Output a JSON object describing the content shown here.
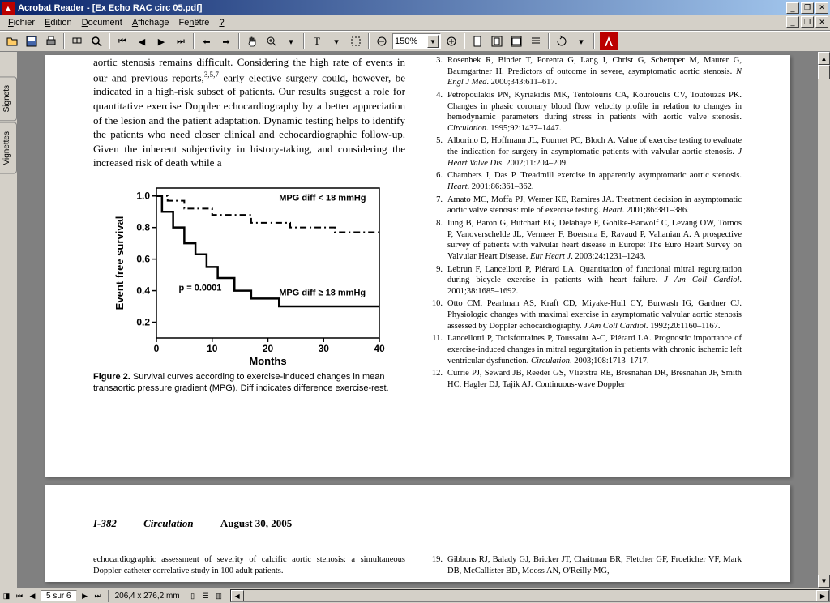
{
  "window": {
    "title": "Acrobat Reader - [Ex Echo RAC circ 05.pdf]"
  },
  "menu": {
    "items": [
      "Fichier",
      "Edition",
      "Document",
      "Affichage",
      "Fenêtre",
      "?"
    ]
  },
  "toolbar": {
    "zoom": "150%"
  },
  "sidebar": {
    "tabs": [
      "Signets",
      "Vignettes"
    ]
  },
  "statusbar": {
    "page_info": "5 sur 6",
    "dimensions": "206,4 x 276,2 mm"
  },
  "page1": {
    "left_body": "aortic stenosis remains difficult. Considering the high rate of events in our and previous reports,<sup>3,5,7</sup> early elective surgery could, however, be indicated in a high-risk subset of patients. Our results suggest a role for quantitative exercise Doppler echocardiography by a better appreciation of the lesion and the patient adaptation. Dynamic testing helps to identify the patients who need closer clinical and echocardiographic follow-up. Given the inherent subjectivity in history-taking, and considering the increased risk of death while a",
    "figure": {
      "caption_bold": "Figure 2.",
      "caption_text": " Survival curves according to exercise-induced changes in mean transaortic pressure gradient (MPG). Diff indicates difference exercise-rest.",
      "ylabel": "Event free survival",
      "xlabel": "Months",
      "xticks": [
        0,
        10,
        20,
        30,
        40
      ],
      "yticks": [
        "0.2",
        "0.4",
        "0.6",
        "0.8",
        "1.0"
      ],
      "curve1_label": "MPG diff < 18 mmHg",
      "curve2_label": "MPG diff ≥ 18 mmHg",
      "pval": "p = 0.0001",
      "curve1_points": [
        [
          0,
          1.0
        ],
        [
          2,
          1.0
        ],
        [
          2,
          0.97
        ],
        [
          5,
          0.97
        ],
        [
          5,
          0.92
        ],
        [
          10,
          0.92
        ],
        [
          10,
          0.88
        ],
        [
          17,
          0.88
        ],
        [
          17,
          0.83
        ],
        [
          24,
          0.83
        ],
        [
          24,
          0.8
        ],
        [
          32,
          0.8
        ],
        [
          32,
          0.77
        ],
        [
          40,
          0.77
        ]
      ],
      "curve2_points": [
        [
          0,
          1.0
        ],
        [
          1,
          1.0
        ],
        [
          1,
          0.9
        ],
        [
          3,
          0.9
        ],
        [
          3,
          0.8
        ],
        [
          5,
          0.8
        ],
        [
          5,
          0.7
        ],
        [
          7,
          0.7
        ],
        [
          7,
          0.63
        ],
        [
          9,
          0.63
        ],
        [
          9,
          0.55
        ],
        [
          11,
          0.55
        ],
        [
          11,
          0.48
        ],
        [
          14,
          0.48
        ],
        [
          14,
          0.4
        ],
        [
          17,
          0.4
        ],
        [
          17,
          0.35
        ],
        [
          22,
          0.35
        ],
        [
          22,
          0.3
        ],
        [
          40,
          0.3
        ]
      ],
      "xlim": [
        0,
        40
      ],
      "ylim": [
        0.1,
        1.05
      ],
      "axis_color": "#000000",
      "font_family": "Arial"
    },
    "references": [
      {
        "n": 3,
        "t": "Rosenhek R, Binder T, Porenta G, Lang I, Christ G, Schemper M, Maurer G, Baumgartner H. Predictors of outcome in severe, asymptomatic aortic stenosis. <i>N Engl J Med</i>. 2000;343:611–617."
      },
      {
        "n": 4,
        "t": "Petropoulakis PN, Kyriakidis MK, Tentolouris CA, Kourouclis CV, Toutouzas PK. Changes in phasic coronary blood flow velocity profile in relation to changes in hemodynamic parameters during stress in patients with aortic valve stenosis. <i>Circulation</i>. 1995;92:1437–1447."
      },
      {
        "n": 5,
        "t": "Alborino D, Hoffmann JL, Fournet PC, Bloch A. Value of exercise testing to evaluate the indication for surgery in asymptomatic patients with valvular aortic stenosis. <i>J Heart Valve Dis</i>. 2002;11:204–209."
      },
      {
        "n": 6,
        "t": "Chambers J, Das P. Treadmill exercise in apparently asymptomatic aortic stenosis. <i>Heart</i>. 2001;86:361–362."
      },
      {
        "n": 7,
        "t": "Amato MC, Moffa PJ, Werner KE, Ramires JA. Treatment decision in asymptomatic aortic valve stenosis: role of exercise testing. <i>Heart</i>. 2001;86:381–386."
      },
      {
        "n": 8,
        "t": "Iung B, Baron G, Butchart EG, Delahaye F, Gohlke-Bärwolf C, Levang OW, Tornos P, Vanoverschelde JL, Vermeer F, Boersma E, Ravaud P, Vahanian A. A prospective survey of patients with valvular heart disease in Europe: The Euro Heart Survey on Valvular Heart Disease. <i>Eur Heart J</i>. 2003;24:1231–1243."
      },
      {
        "n": 9,
        "t": "Lebrun F, Lancellotti P, Piérard LA. Quantitation of functional mitral regurgitation during bicycle exercise in patients with heart failure. <i>J Am Coll Cardiol</i>. 2001;38:1685–1692."
      },
      {
        "n": 10,
        "t": "Otto CM, Pearlman AS, Kraft CD, Miyake-Hull CY, Burwash IG, Gardner CJ. Physiologic changes with maximal exercise in asymptomatic valvular aortic stenosis assessed by Doppler echocardiography. <i>J Am Coll Cardiol</i>. 1992;20:1160–1167."
      },
      {
        "n": 11,
        "t": "Lancellotti P, Troisfontaines P, Toussaint A-C, Piérard LA. Prognostic importance of exercise-induced changes in mitral regurgitation in patients with chronic ischemic left ventricular dysfunction. <i>Circulation</i>. 2003;108:1713–1717."
      },
      {
        "n": 12,
        "t": "Currie PJ, Seward JB, Reeder GS, Vlietstra RE, Bresnahan DR, Bresnahan JF, Smith HC, Hagler DJ, Tajik AJ. Continuous-wave Doppler"
      }
    ]
  },
  "page2": {
    "page_num": "I-382",
    "journal": "Circulation",
    "date": "August 30, 2005",
    "left_text": "echocardiographic assessment of severity of calcific aortic stenosis: a simultaneous Doppler-catheter correlative study in 100 adult patients.",
    "ref19": {
      "n": 19,
      "t": "Gibbons RJ, Balady GJ, Bricker JT, Chaitman BR, Fletcher GF, Froelicher VF, Mark DB, McCallister BD, Mooss AN, O'Reilly MG,"
    }
  }
}
